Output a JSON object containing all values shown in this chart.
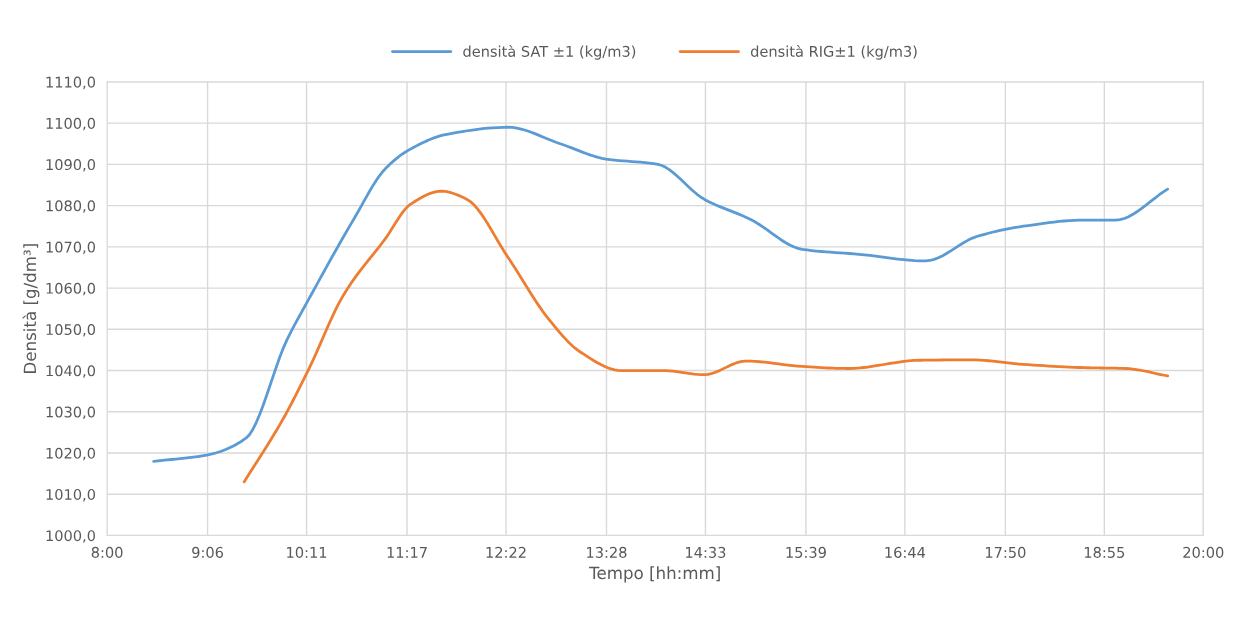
{
  "chart_data": {
    "type": "line",
    "xlabel": "Tempo [hh:mm]",
    "ylabel": "Densità [g/dm³]",
    "xlim": [
      8,
      20
    ],
    "ylim": [
      1000,
      1110
    ],
    "xticks": [
      {
        "value": 8,
        "label": "8:00"
      },
      {
        "value": 9.1,
        "label": "9:06"
      },
      {
        "value": 10.1833,
        "label": "10:11"
      },
      {
        "value": 11.2833,
        "label": "11:17"
      },
      {
        "value": 12.3667,
        "label": "12:22"
      },
      {
        "value": 13.4667,
        "label": "13:28"
      },
      {
        "value": 14.55,
        "label": "14:33"
      },
      {
        "value": 15.65,
        "label": "15:39"
      },
      {
        "value": 16.7333,
        "label": "16:44"
      },
      {
        "value": 17.8333,
        "label": "17:50"
      },
      {
        "value": 18.9167,
        "label": "18:55"
      },
      {
        "value": 20,
        "label": "20:00"
      }
    ],
    "yticks": [
      {
        "value": 1000,
        "label": "1000,0"
      },
      {
        "value": 1010,
        "label": "1010,0"
      },
      {
        "value": 1020,
        "label": "1020,0"
      },
      {
        "value": 1030,
        "label": "1030,0"
      },
      {
        "value": 1040,
        "label": "1040,0"
      },
      {
        "value": 1050,
        "label": "1050,0"
      },
      {
        "value": 1060,
        "label": "1060,0"
      },
      {
        "value": 1070,
        "label": "1070,0"
      },
      {
        "value": 1080,
        "label": "1080,0"
      },
      {
        "value": 1090,
        "label": "1090,0"
      },
      {
        "value": 1100,
        "label": "1100,0"
      },
      {
        "value": 1110,
        "label": "1110,0"
      }
    ],
    "grid": true,
    "legend": "top",
    "marker": "none",
    "line_style": "solid",
    "series": [
      {
        "name": "densità SAT ±1 (kg/m3)",
        "color": "#5b9bd5",
        "x": [
          8.51,
          9.09,
          9.52,
          9.97,
          10.2,
          10.7,
          11.04,
          11.32,
          11.72,
          12.39,
          12.96,
          13.46,
          14.03,
          14.54,
          15.04,
          15.61,
          16.23,
          16.96,
          17.52,
          18.03,
          18.7,
          19.04,
          19.61
        ],
        "values": [
          1018,
          1019.5,
          1023.6,
          1047.5,
          1057,
          1076.7,
          1088.8,
          1093.7,
          1097.3,
          1099,
          1095,
          1091.3,
          1090,
          1081.5,
          1076.7,
          1069.4,
          1068.2,
          1066.6,
          1072.5,
          1075,
          1076.5,
          1076.5,
          1084
        ]
      },
      {
        "name": "densità RIG±1 (kg/m3)",
        "color": "#ed7d31",
        "x": [
          9.5,
          9.92,
          10.2,
          10.59,
          11.04,
          11.32,
          11.66,
          11.94,
          12.39,
          12.84,
          13.18,
          13.63,
          14.08,
          14.54,
          14.99,
          15.61,
          16.11,
          16.9,
          17.46,
          18.03,
          18.7,
          19.15,
          19.61
        ],
        "values": [
          1013,
          1028,
          1040,
          1058.4,
          1071.8,
          1080.3,
          1083.5,
          1081.5,
          1067.4,
          1052.3,
          1044.5,
          1040,
          1040,
          1039,
          1042.3,
          1041,
          1040.5,
          1042.5,
          1042.6,
          1041.5,
          1040.7,
          1040.5,
          1038.7
        ]
      }
    ]
  }
}
